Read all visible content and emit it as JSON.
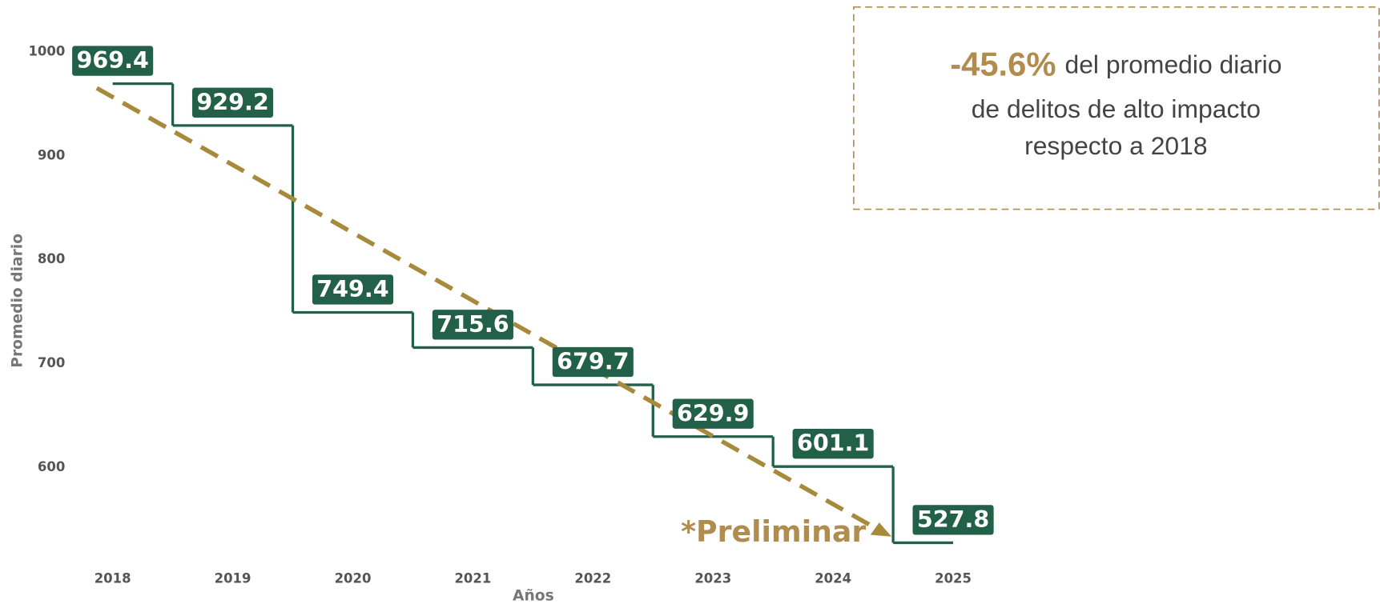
{
  "chart_data": {
    "type": "step",
    "categories": [
      "2018",
      "2019",
      "2020",
      "2021",
      "2022",
      "2023",
      "2024",
      "2025"
    ],
    "values": [
      969.4,
      929.2,
      749.4,
      715.6,
      679.7,
      629.9,
      601.1,
      527.8
    ],
    "color": "#23604a",
    "trend_color": "#a88a3c",
    "ylim": [
      520,
      1000
    ],
    "yticks": [
      600,
      700,
      800,
      900,
      1000
    ],
    "ylabel": "Promedio diario",
    "xlabel": "Años",
    "annotation": {
      "highlight": "-45.6%",
      "lines": [
        "del promedio diario",
        "de delitos de alto impacto",
        "respecto a 2018"
      ]
    },
    "footnote": "*Preliminar"
  }
}
